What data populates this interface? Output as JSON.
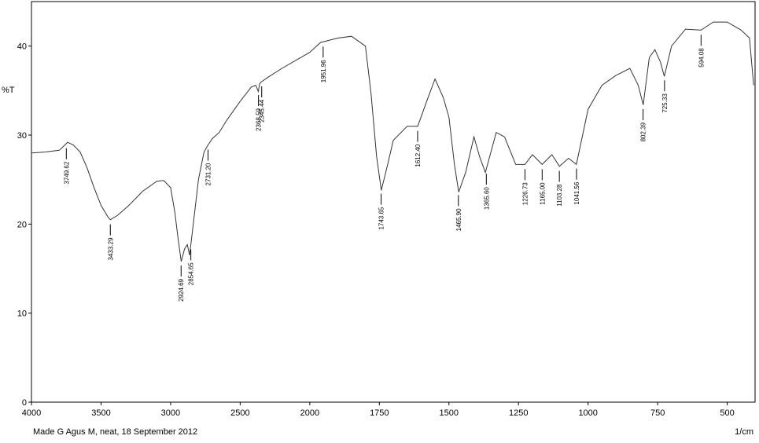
{
  "chart_data": {
    "type": "line",
    "y_label": "%T",
    "x_unit": "1/cm",
    "footer": "Made G Agus M, neat,  18 September 2012",
    "xlim": [
      4000,
      400
    ],
    "ylim": [
      0,
      45
    ],
    "x_scale_break": 2000,
    "xticks": [
      4000,
      3500,
      3000,
      2500,
      2000,
      1750,
      1500,
      1250,
      1000,
      750,
      500
    ],
    "yticks": [
      0,
      10,
      20,
      30,
      40
    ],
    "color": "#333333",
    "x": [
      4000,
      3900,
      3800,
      3760,
      3740,
      3700,
      3650,
      3600,
      3550,
      3500,
      3450,
      3433,
      3380,
      3300,
      3200,
      3100,
      3050,
      3000,
      2970,
      2950,
      2924,
      2900,
      2880,
      2864,
      2840,
      2800,
      2760,
      2731,
      2700,
      2650,
      2600,
      2500,
      2420,
      2388,
      2370,
      2360,
      2346,
      2300,
      2200,
      2100,
      2000,
      1961,
      1900,
      1850,
      1800,
      1780,
      1760,
      1743,
      1720,
      1700,
      1650,
      1612,
      1580,
      1550,
      1520,
      1500,
      1480,
      1465,
      1440,
      1410,
      1390,
      1369,
      1330,
      1300,
      1260,
      1227,
      1200,
      1165,
      1130,
      1103,
      1070,
      1042,
      1000,
      950,
      900,
      850,
      820,
      802,
      780,
      760,
      740,
      726,
      700,
      650,
      594,
      550,
      500,
      450,
      420,
      405
    ],
    "values": [
      28.0,
      28.1,
      28.3,
      28.9,
      29.2,
      28.9,
      28.1,
      26.3,
      24.1,
      22.1,
      20.8,
      20.5,
      21.0,
      22.1,
      23.7,
      24.8,
      24.9,
      24.1,
      21.4,
      18.8,
      15.8,
      17.2,
      17.7,
      16.5,
      19.6,
      25.0,
      28.1,
      28.9,
      29.6,
      30.3,
      31.6,
      33.8,
      35.4,
      35.6,
      34.9,
      35.8,
      36.0,
      36.5,
      37.5,
      38.4,
      39.3,
      40.4,
      40.9,
      41.1,
      40.0,
      34.7,
      27.6,
      23.8,
      26.7,
      29.4,
      31.0,
      31.0,
      33.8,
      36.3,
      34.2,
      32.0,
      26.7,
      23.6,
      25.8,
      29.8,
      27.6,
      25.8,
      30.3,
      29.8,
      26.7,
      26.7,
      27.8,
      26.7,
      27.8,
      26.5,
      27.4,
      26.7,
      32.9,
      35.6,
      36.7,
      37.5,
      35.6,
      33.4,
      38.7,
      39.6,
      38.2,
      36.6,
      40.0,
      41.9,
      41.8,
      42.7,
      42.7,
      41.8,
      40.9,
      35.6
    ],
    "peaks": {
      "values": [
        3749.62,
        3433.29,
        2924.69,
        2854.65,
        2731.2,
        2368.59,
        2345.44,
        1951.96,
        1743.65,
        1612.4,
        1465.9,
        1365.6,
        1226.73,
        1165.0,
        1103.28,
        1041.56,
        802.39,
        725.33,
        594.08
      ],
      "value_labels": [
        "3749.62",
        "3433.29",
        "2924.69",
        "2854.65",
        "2731.20",
        "2368.59",
        "2345.44",
        "1951.96",
        "1743.65",
        "1612.40",
        "1465.90",
        "1365.60",
        "1226.73",
        "1165.00",
        "1103.28",
        "1041.56",
        "802.39",
        "725.33",
        "594.08"
      ]
    }
  }
}
